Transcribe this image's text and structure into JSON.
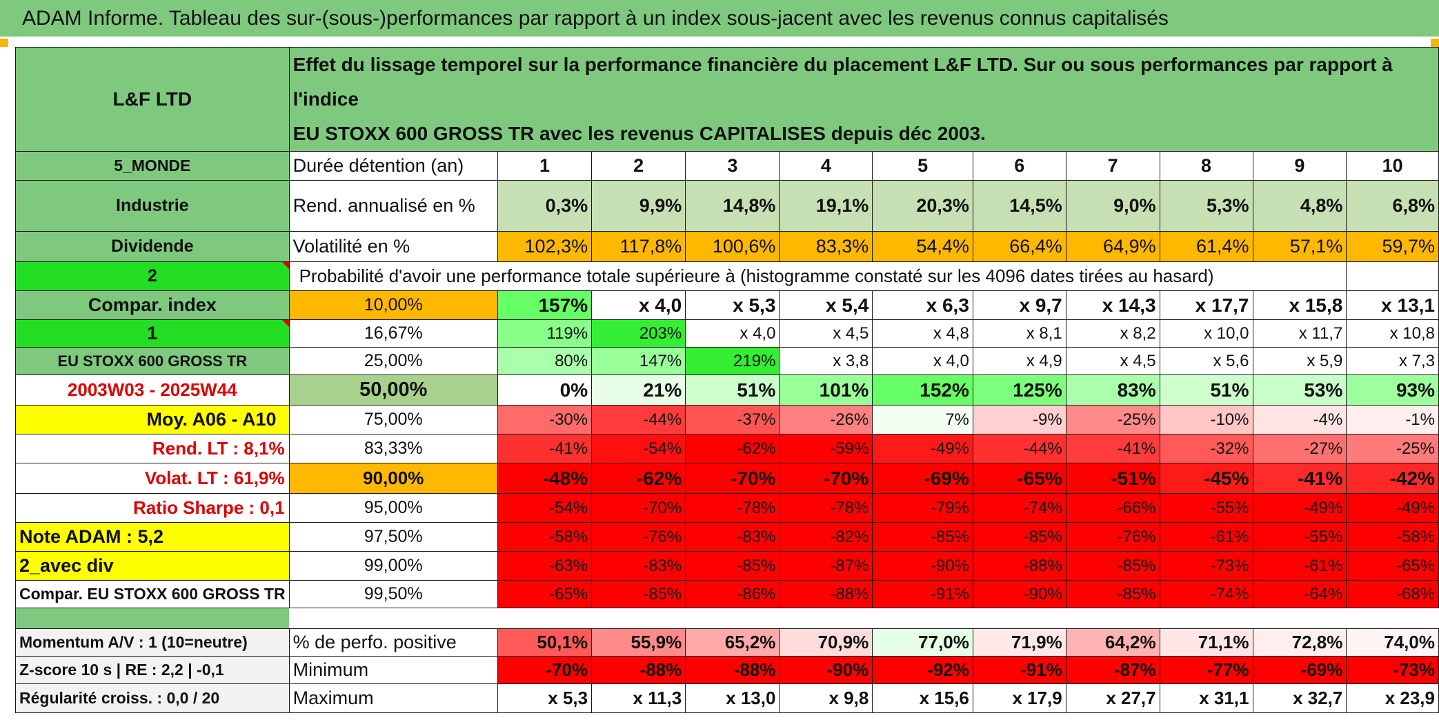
{
  "banner": "ADAM Informe. Tableau des sur-(sous-)performances par rapport à un index sous-jacent avec les revenus connus capitalisés",
  "header": {
    "name": "L&F LTD",
    "description_line1": "Effet du lissage temporel sur la performance financière du placement L&F LTD. Sur ou sous performances par rapport à l'indice",
    "description_line2": "EU STOXX 600 GROSS TR avec les revenus CAPITALISES depuis déc 2003."
  },
  "info": {
    "zone": "5_MONDE",
    "sector": "Industrie",
    "type": "Dividende",
    "selector_a": "2",
    "compar_label": "Compar. index",
    "selector_b": "1",
    "index_name": "EU STOXX 600 GROSS TR",
    "period": "2003W03 - 2025W44",
    "moy": "Moy. A06 - A10",
    "rend_lt": "Rend. LT :   8,1%",
    "volat_lt": "Volat. LT :   61,9%",
    "sharpe": "Ratio Sharpe :    0,1",
    "note": "Note ADAM : 5,2",
    "avec_div": "2_avec div",
    "compar_full": "Compar. EU STOXX 600 GROSS TR",
    "momentum": "Momentum A/V : 1 (10=neutre)",
    "zscore": "Z-score 10 s | RE : 2,2 | -0,1",
    "regularite": "Régularité croiss. : 0,0 / 20"
  },
  "years_label": "Durée détention (an)",
  "years": [
    "1",
    "2",
    "3",
    "4",
    "5",
    "6",
    "7",
    "8",
    "9",
    "10"
  ],
  "rend": {
    "label": "Rend. annualisé en %",
    "values": [
      "0,3%",
      "9,9%",
      "14,8%",
      "19,1%",
      "20,3%",
      "14,5%",
      "9,0%",
      "5,3%",
      "4,8%",
      "6,8%"
    ]
  },
  "volat": {
    "label": "Volatilité en %",
    "values": [
      "102,3%",
      "117,8%",
      "100,6%",
      "83,3%",
      "54,4%",
      "66,4%",
      "64,9%",
      "61,4%",
      "57,1%",
      "59,7%"
    ]
  },
  "prob_text": "Probabilité d'avoir une performance totale supérieure à (histogramme constaté sur les 4096 dates tirées au hasard)",
  "prob_rows": [
    {
      "pct": "10,00%",
      "vals": [
        "157%",
        "x 4,0",
        "x 5,3",
        "x 5,4",
        "x 6,3",
        "x 9,7",
        "x 14,3",
        "x 17,7",
        "x 15,8",
        "x 13,1"
      ]
    },
    {
      "pct": "16,67%",
      "vals": [
        "119%",
        "203%",
        "x 4,0",
        "x 4,5",
        "x 4,8",
        "x 8,1",
        "x 8,2",
        "x 10,0",
        "x 11,7",
        "x 10,8"
      ]
    },
    {
      "pct": "25,00%",
      "vals": [
        "80%",
        "147%",
        "219%",
        "x 3,8",
        "x 4,0",
        "x 4,9",
        "x 4,5",
        "x 5,6",
        "x 5,9",
        "x 7,3"
      ]
    },
    {
      "pct": "50,00%",
      "vals": [
        "0%",
        "21%",
        "51%",
        "101%",
        "152%",
        "125%",
        "83%",
        "51%",
        "53%",
        "93%"
      ]
    },
    {
      "pct": "75,00%",
      "vals": [
        "-30%",
        "-44%",
        "-37%",
        "-26%",
        "7%",
        "-9%",
        "-25%",
        "-10%",
        "-4%",
        "-1%"
      ]
    },
    {
      "pct": "83,33%",
      "vals": [
        "-41%",
        "-54%",
        "-62%",
        "-59%",
        "-49%",
        "-44%",
        "-41%",
        "-32%",
        "-27%",
        "-25%"
      ]
    },
    {
      "pct": "90,00%",
      "vals": [
        "-48%",
        "-62%",
        "-70%",
        "-70%",
        "-69%",
        "-65%",
        "-51%",
        "-45%",
        "-41%",
        "-42%"
      ]
    },
    {
      "pct": "95,00%",
      "vals": [
        "-54%",
        "-70%",
        "-78%",
        "-78%",
        "-79%",
        "-74%",
        "-66%",
        "-55%",
        "-49%",
        "-49%"
      ]
    },
    {
      "pct": "97,50%",
      "vals": [
        "-58%",
        "-76%",
        "-83%",
        "-82%",
        "-85%",
        "-85%",
        "-76%",
        "-61%",
        "-55%",
        "-58%"
      ]
    },
    {
      "pct": "99,00%",
      "vals": [
        "-63%",
        "-83%",
        "-85%",
        "-87%",
        "-90%",
        "-88%",
        "-85%",
        "-73%",
        "-61%",
        "-65%"
      ]
    },
    {
      "pct": "99,50%",
      "vals": [
        "-65%",
        "-85%",
        "-86%",
        "-88%",
        "-91%",
        "-90%",
        "-85%",
        "-74%",
        "-64%",
        "-68%"
      ]
    }
  ],
  "stats": {
    "positive": {
      "label": "% de perfo. positive",
      "vals": [
        "50,1%",
        "55,9%",
        "65,2%",
        "70,9%",
        "77,0%",
        "71,9%",
        "64,2%",
        "71,1%",
        "72,8%",
        "74,0%"
      ]
    },
    "minimum": {
      "label": "Minimum",
      "vals": [
        "-70%",
        "-88%",
        "-88%",
        "-90%",
        "-92%",
        "-91%",
        "-87%",
        "-77%",
        "-69%",
        "-73%"
      ]
    },
    "maximum": {
      "label": "Maximum",
      "vals": [
        "x 5,3",
        "x 11,3",
        "x 13,0",
        "x 9,8",
        "x 15,6",
        "x 17,9",
        "x 27,7",
        "x 31,1",
        "x 32,7",
        "x 23,9"
      ]
    }
  },
  "colors": {
    "green_header": "#7fc97f",
    "bright_green": "#22dd22",
    "orange": "#ffb800",
    "yellow": "#ffff00",
    "light_green": "#c6e0b4",
    "red": "#e00000",
    "deep_red": "#ff0000"
  },
  "cell_fills": {
    "prob_rows": [
      [
        "#66ff66",
        "#ffffff",
        "#ffffff",
        "#ffffff",
        "#ffffff",
        "#ffffff",
        "#ffffff",
        "#ffffff",
        "#ffffff",
        "#ffffff"
      ],
      [
        "#88ff88",
        "#33ee33",
        "#ffffff",
        "#ffffff",
        "#ffffff",
        "#ffffff",
        "#ffffff",
        "#ffffff",
        "#ffffff",
        "#ffffff"
      ],
      [
        "#aaffaa",
        "#99ff99",
        "#33ee33",
        "#ffffff",
        "#ffffff",
        "#ffffff",
        "#ffffff",
        "#ffffff",
        "#ffffff",
        "#ffffff"
      ],
      [
        "#ffffff",
        "#e6ffe6",
        "#ccffcc",
        "#99ff99",
        "#66ff66",
        "#7dff7d",
        "#aaffaa",
        "#ccffcc",
        "#c8ffc8",
        "#9dff9d"
      ],
      [
        "#ff6b6b",
        "#ff3b3b",
        "#ff5555",
        "#ff8080",
        "#f4fff4",
        "#ffd0d0",
        "#ff8a8a",
        "#ffc6c6",
        "#ffe4e4",
        "#fff0f0"
      ],
      [
        "#ff3030",
        "#ff1010",
        "#ff0000",
        "#ff0000",
        "#ff1a1a",
        "#ff3030",
        "#ff3b3b",
        "#ff5a5a",
        "#ff7070",
        "#ff7a7a"
      ],
      [
        "#ff0000",
        "#ff0000",
        "#ff0000",
        "#ff0000",
        "#ff0000",
        "#ff0000",
        "#ff0000",
        "#ff1a1a",
        "#ff2a2a",
        "#ff2828"
      ],
      [
        "#ff0000",
        "#ff0000",
        "#ff0000",
        "#ff0000",
        "#ff0000",
        "#ff0000",
        "#ff0000",
        "#ff0000",
        "#ff0000",
        "#ff0000"
      ],
      [
        "#ff0000",
        "#ff0000",
        "#ff0000",
        "#ff0000",
        "#ff0000",
        "#ff0000",
        "#ff0000",
        "#ff0000",
        "#ff0000",
        "#ff0000"
      ],
      [
        "#ff0000",
        "#ff0000",
        "#ff0000",
        "#ff0000",
        "#ff0000",
        "#ff0000",
        "#ff0000",
        "#ff0000",
        "#ff0000",
        "#ff0000"
      ],
      [
        "#ff0000",
        "#ff0000",
        "#ff0000",
        "#ff0000",
        "#ff0000",
        "#ff0000",
        "#ff0000",
        "#ff0000",
        "#ff0000",
        "#ff0000"
      ]
    ],
    "positive": [
      "#ff5a5a",
      "#ff8a8a",
      "#ffaaaa",
      "#ffdcdc",
      "#e6ffe6",
      "#ffe8e8",
      "#ffb4b4",
      "#ffe6e6",
      "#ffeeee",
      "#fff4f4"
    ],
    "minimum": [
      "#ff0000",
      "#ff0000",
      "#ff0000",
      "#ff0000",
      "#ff0000",
      "#ff0000",
      "#ff0000",
      "#ff0000",
      "#ff0000",
      "#ff0000"
    ],
    "maximum": [
      "#ffffff",
      "#ffffff",
      "#ffffff",
      "#ffffff",
      "#ffffff",
      "#ffffff",
      "#ffffff",
      "#ffffff",
      "#ffffff",
      "#ffffff"
    ]
  }
}
